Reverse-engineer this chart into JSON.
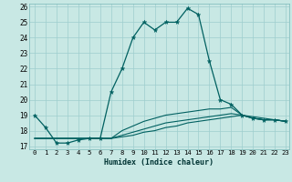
{
  "xlabel": "Humidex (Indice chaleur)",
  "xlim": [
    -0.5,
    23.3
  ],
  "ylim": [
    16.8,
    26.2
  ],
  "yticks": [
    17,
    18,
    19,
    20,
    21,
    22,
    23,
    24,
    25,
    26
  ],
  "xticks": [
    0,
    1,
    2,
    3,
    4,
    5,
    6,
    7,
    8,
    9,
    10,
    11,
    12,
    13,
    14,
    15,
    16,
    17,
    18,
    19,
    20,
    21,
    22,
    23
  ],
  "bg_color": "#c8e8e4",
  "grid_color": "#9ecece",
  "line_color": "#006060",
  "line1_x": [
    0,
    1,
    2,
    3,
    4,
    5,
    6,
    7,
    8,
    9,
    10,
    11,
    12,
    13,
    14,
    15,
    16,
    17,
    18,
    19,
    20,
    21,
    22,
    23
  ],
  "line1_y": [
    19.0,
    18.2,
    17.2,
    17.2,
    17.4,
    17.5,
    17.5,
    20.5,
    22.0,
    24.0,
    25.0,
    24.5,
    25.0,
    25.0,
    25.9,
    25.5,
    22.5,
    20.0,
    19.7,
    19.0,
    18.8,
    18.7,
    18.7,
    18.6
  ],
  "line2_x": [
    0,
    1,
    2,
    3,
    4,
    5,
    6,
    7,
    8,
    9,
    10,
    11,
    12,
    13,
    14,
    15,
    16,
    17,
    18,
    19,
    20,
    21,
    22,
    23
  ],
  "line2_y": [
    17.5,
    17.5,
    17.5,
    17.5,
    17.5,
    17.5,
    17.5,
    17.5,
    18.0,
    18.3,
    18.6,
    18.8,
    19.0,
    19.1,
    19.2,
    19.3,
    19.4,
    19.4,
    19.5,
    19.0,
    18.9,
    18.8,
    18.7,
    18.6
  ],
  "line3_x": [
    0,
    1,
    2,
    3,
    4,
    5,
    6,
    7,
    8,
    9,
    10,
    11,
    12,
    13,
    14,
    15,
    16,
    17,
    18,
    19,
    20,
    21,
    22,
    23
  ],
  "line3_y": [
    17.5,
    17.5,
    17.5,
    17.5,
    17.5,
    17.5,
    17.5,
    17.5,
    17.7,
    17.9,
    18.1,
    18.3,
    18.5,
    18.6,
    18.7,
    18.8,
    18.9,
    19.0,
    19.1,
    19.0,
    18.8,
    18.7,
    18.7,
    18.6
  ],
  "line4_x": [
    0,
    1,
    2,
    3,
    4,
    5,
    6,
    7,
    8,
    9,
    10,
    11,
    12,
    13,
    14,
    15,
    16,
    17,
    18,
    19,
    20,
    21,
    22,
    23
  ],
  "line4_y": [
    17.5,
    17.5,
    17.5,
    17.5,
    17.5,
    17.5,
    17.5,
    17.5,
    17.6,
    17.7,
    17.9,
    18.0,
    18.2,
    18.3,
    18.5,
    18.6,
    18.7,
    18.8,
    18.9,
    19.0,
    18.8,
    18.7,
    18.7,
    18.6
  ]
}
